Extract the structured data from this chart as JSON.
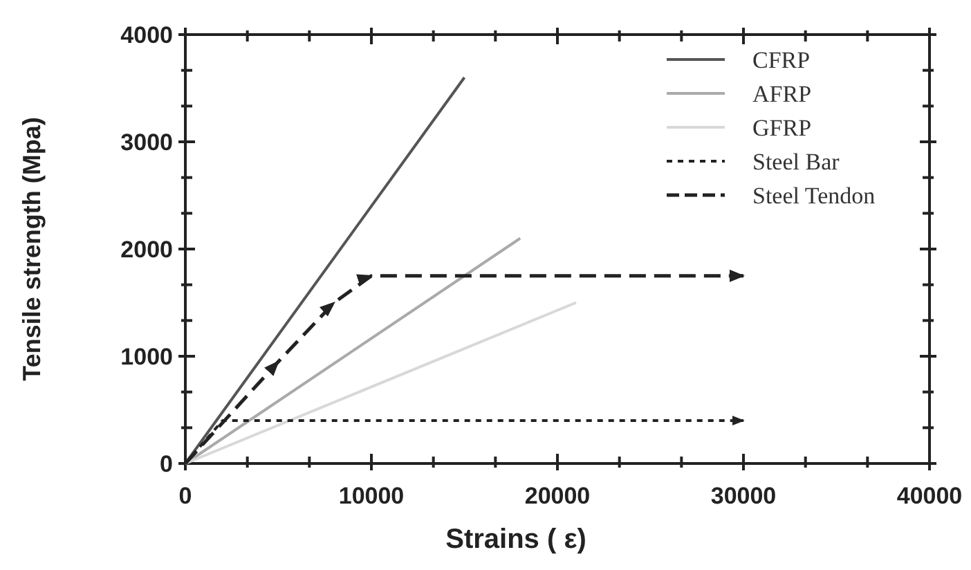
{
  "chart_data": {
    "type": "line",
    "xlabel": "Strains (  ε)",
    "ylabel": "Tensile strength (Mpa)",
    "xlim": [
      0,
      40000
    ],
    "ylim": [
      0,
      4000
    ],
    "xticks": [
      0,
      {
        "value": 3333.33,
        "label": null
      },
      {
        "value": 6666.67,
        "label": null
      },
      10000,
      {
        "value": 13333.33,
        "label": null
      },
      {
        "value": 16666.67,
        "label": null
      },
      20000,
      {
        "value": 23333.33,
        "label": null
      },
      {
        "value": 26666.67,
        "label": null
      },
      30000,
      {
        "value": 33333.33,
        "label": null
      },
      {
        "value": 36666.67,
        "label": null
      },
      40000
    ],
    "yticks": [
      0,
      {
        "value": 333.33,
        "label": null
      },
      {
        "value": 666.67,
        "label": null
      },
      1000,
      {
        "value": 1333.33,
        "label": null
      },
      {
        "value": 1666.67,
        "label": null
      },
      2000,
      {
        "value": 2333.33,
        "label": null
      },
      {
        "value": 2666.67,
        "label": null
      },
      3000,
      {
        "value": 3333.33,
        "label": null
      },
      {
        "value": 3666.67,
        "label": null
      },
      4000
    ],
    "grid": false,
    "legend": "top right",
    "marker": "none",
    "series": [
      {
        "name": "CFRP",
        "color": "#555555",
        "line_style": "solid",
        "x": [
          0,
          15000
        ],
        "values": [
          0,
          3600
        ]
      },
      {
        "name": "AFRP",
        "color": "#aaaaaa",
        "line_style": "solid",
        "x": [
          0,
          18000
        ],
        "values": [
          0,
          2100
        ]
      },
      {
        "name": "GFRP",
        "color": "#d8d8d8",
        "line_style": "solid",
        "x": [
          0,
          21000
        ],
        "values": [
          0,
          1500
        ]
      },
      {
        "name": "Steel Bar",
        "color": "#222222",
        "line_style": "dotted",
        "x": [
          0,
          2000,
          30000
        ],
        "values": [
          0,
          400,
          400
        ]
      },
      {
        "name": "Steel Tendon",
        "color": "#222222",
        "line_style": "dashed",
        "x": [
          0,
          5000,
          8000,
          10000,
          30000
        ],
        "values": [
          0,
          950,
          1500,
          1750,
          1750
        ]
      }
    ]
  }
}
